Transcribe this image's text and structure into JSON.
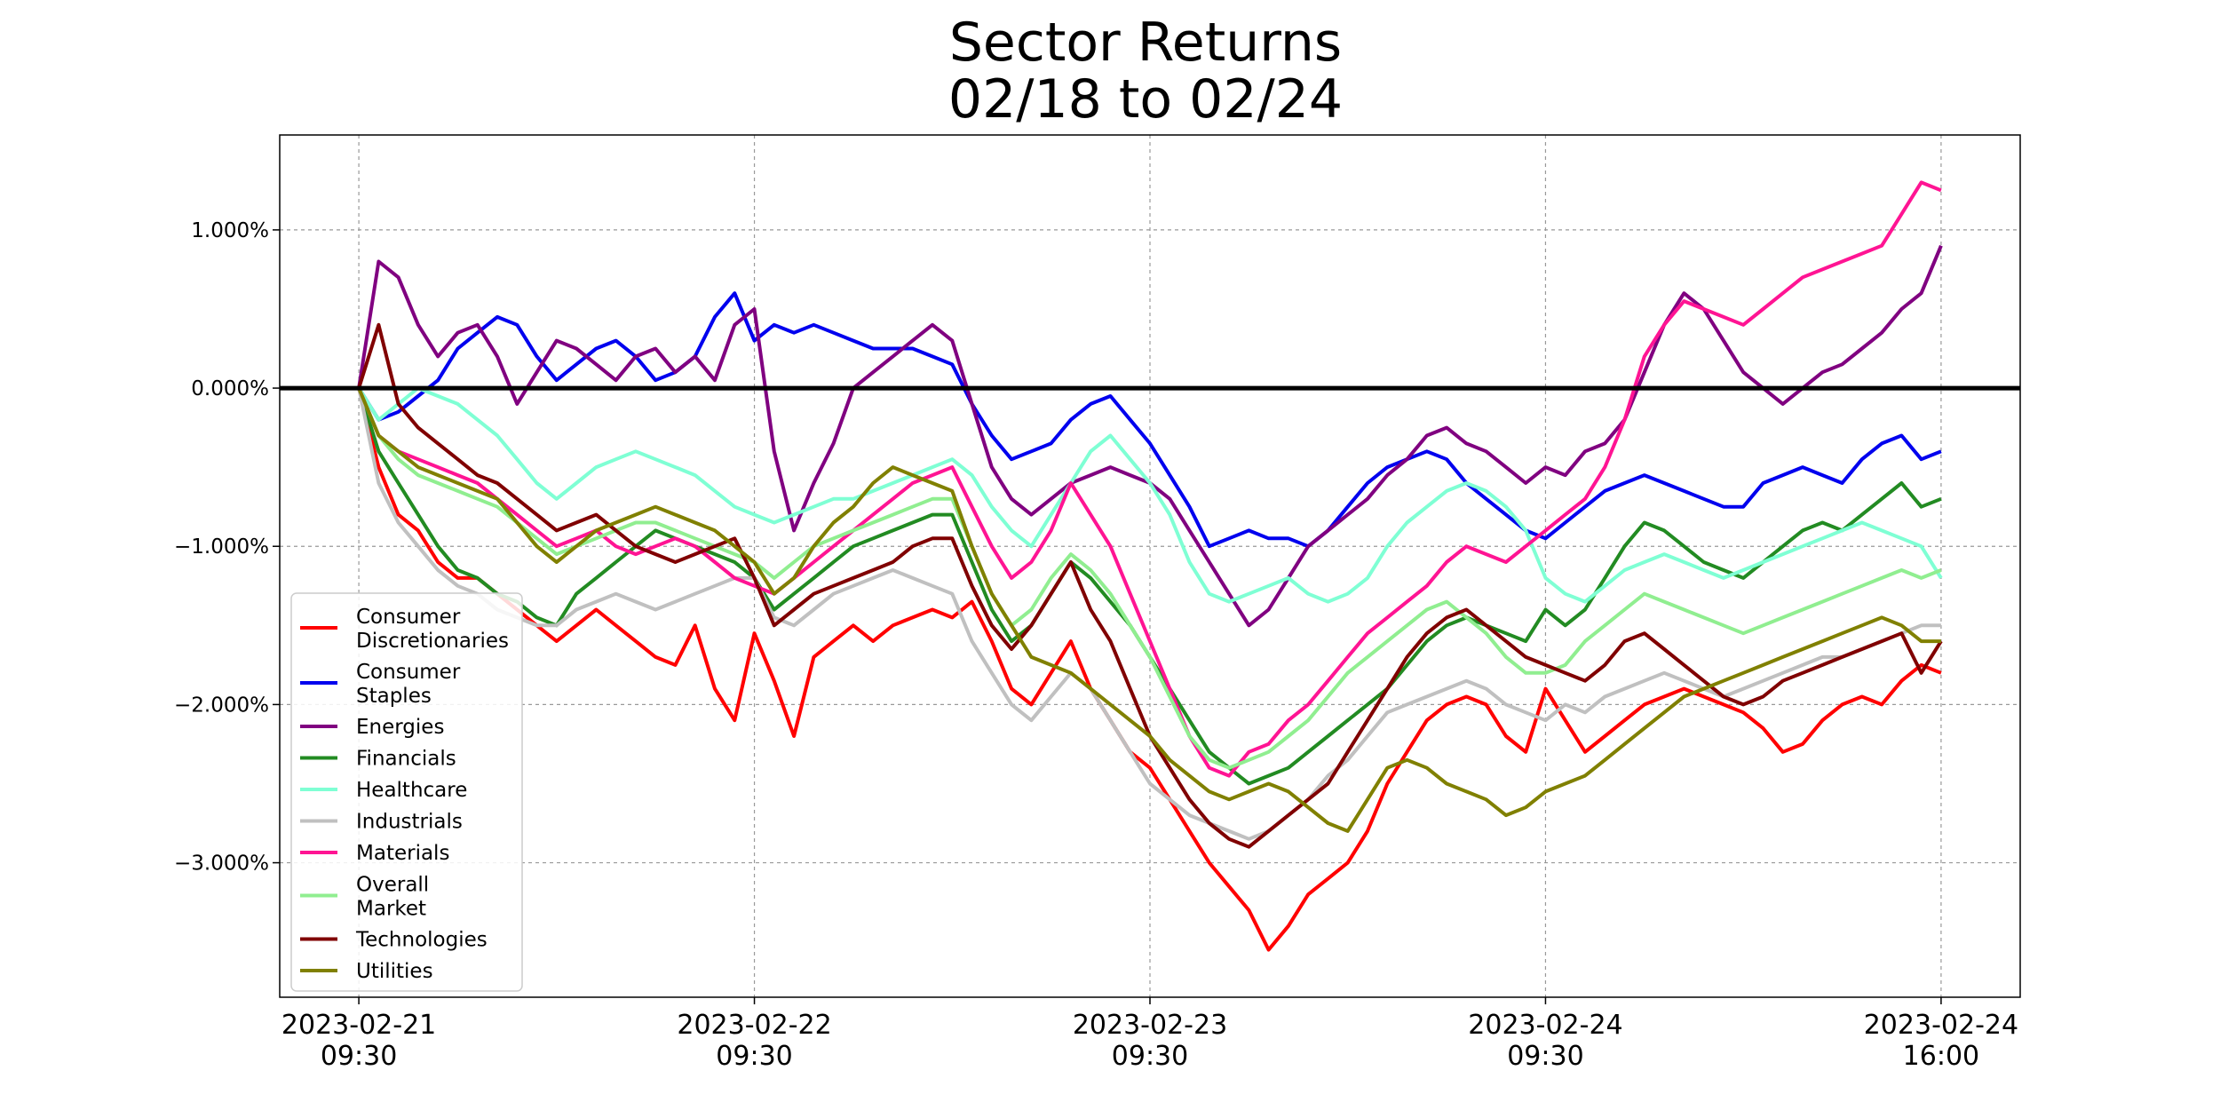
{
  "chart_data": {
    "type": "line",
    "title": [
      "Sector Returns",
      "02/18 to 02/24"
    ],
    "xlabel": "",
    "ylabel": "",
    "x": [
      0,
      0.05,
      0.1,
      0.15,
      0.2,
      0.25,
      0.3,
      0.35,
      0.4,
      0.45,
      0.5,
      0.55,
      0.6,
      0.65,
      0.7,
      0.75,
      0.8,
      0.85,
      0.9,
      0.95,
      1.0,
      1.05,
      1.1,
      1.15,
      1.2,
      1.25,
      1.3,
      1.35,
      1.4,
      1.45,
      1.5,
      1.55,
      1.6,
      1.65,
      1.7,
      1.75,
      1.8,
      1.85,
      1.9,
      1.95,
      2.0,
      2.05,
      2.1,
      2.15,
      2.2,
      2.25,
      2.3,
      2.35,
      2.4,
      2.45,
      2.5,
      2.55,
      2.6,
      2.65,
      2.7,
      2.75,
      2.8,
      2.85,
      2.9,
      2.95,
      3.0,
      3.05,
      3.1,
      3.15,
      3.2,
      3.25,
      3.3,
      3.35,
      3.4,
      3.45,
      3.5,
      3.55,
      3.6,
      3.65,
      3.7,
      3.75,
      3.8,
      3.85,
      3.9,
      3.95,
      4.0
    ],
    "xlim": [
      -0.2,
      4.2
    ],
    "ylim": [
      -3.85,
      1.6
    ],
    "yticks": [
      -3,
      -2,
      -1,
      0,
      1
    ],
    "ytick_labels": [
      "−3.000%",
      "−2.000%",
      "−1.000%",
      "0.000%",
      "1.000%"
    ],
    "xticks": [
      0,
      1,
      2,
      3,
      4
    ],
    "xtick_labels": [
      [
        "2023-02-21",
        "09:30"
      ],
      [
        "2023-02-22",
        "09:30"
      ],
      [
        "2023-02-23",
        "09:30"
      ],
      [
        "2023-02-24",
        "09:30"
      ],
      [
        "2023-02-24",
        "16:00"
      ]
    ],
    "grid": true,
    "zero_line": 0,
    "legend_position": "lower-left",
    "series": [
      {
        "name": [
          "Consumer",
          "Discretionaries"
        ],
        "color": "#ff0000",
        "values": [
          0,
          -0.5,
          -0.8,
          -0.9,
          -1.1,
          -1.2,
          -1.2,
          -1.3,
          -1.4,
          -1.5,
          -1.6,
          -1.5,
          -1.4,
          -1.5,
          -1.6,
          -1.7,
          -1.75,
          -1.5,
          -1.9,
          -2.1,
          -1.55,
          -1.85,
          -2.2,
          -1.7,
          -1.6,
          -1.5,
          -1.6,
          -1.5,
          -1.45,
          -1.4,
          -1.45,
          -1.35,
          -1.6,
          -1.9,
          -2.0,
          -1.8,
          -1.6,
          -1.9,
          -2.1,
          -2.3,
          -2.4,
          -2.6,
          -2.8,
          -3.0,
          -3.15,
          -3.3,
          -3.55,
          -3.4,
          -3.2,
          -3.1,
          -3.0,
          -2.8,
          -2.5,
          -2.3,
          -2.1,
          -2.0,
          -1.95,
          -2.0,
          -2.2,
          -2.3,
          -1.9,
          -2.1,
          -2.3,
          -2.2,
          -2.1,
          -2.0,
          -1.95,
          -1.9,
          -1.95,
          -2.0,
          -2.05,
          -2.15,
          -2.3,
          -2.25,
          -2.1,
          -2.0,
          -1.95,
          -2.0,
          -1.85,
          -1.75,
          -1.8
        ]
      },
      {
        "name": [
          "Consumer",
          "Staples"
        ],
        "color": "#0000ee",
        "values": [
          0,
          -0.2,
          -0.15,
          -0.05,
          0.05,
          0.25,
          0.35,
          0.45,
          0.4,
          0.2,
          0.05,
          0.15,
          0.25,
          0.3,
          0.2,
          0.05,
          0.1,
          0.2,
          0.45,
          0.6,
          0.3,
          0.4,
          0.35,
          0.4,
          0.35,
          0.3,
          0.25,
          0.25,
          0.25,
          0.2,
          0.15,
          -0.1,
          -0.3,
          -0.45,
          -0.4,
          -0.35,
          -0.2,
          -0.1,
          -0.05,
          -0.2,
          -0.35,
          -0.55,
          -0.75,
          -1.0,
          -0.95,
          -0.9,
          -0.95,
          -0.95,
          -1.0,
          -0.9,
          -0.75,
          -0.6,
          -0.5,
          -0.45,
          -0.4,
          -0.45,
          -0.6,
          -0.7,
          -0.8,
          -0.9,
          -0.95,
          -0.85,
          -0.75,
          -0.65,
          -0.6,
          -0.55,
          -0.6,
          -0.65,
          -0.7,
          -0.75,
          -0.75,
          -0.6,
          -0.55,
          -0.5,
          -0.55,
          -0.6,
          -0.45,
          -0.35,
          -0.3,
          -0.45,
          -0.4
        ]
      },
      {
        "name": [
          "Energies"
        ],
        "color": "#800080",
        "values": [
          0,
          0.8,
          0.7,
          0.4,
          0.2,
          0.35,
          0.4,
          0.2,
          -0.1,
          0.1,
          0.3,
          0.25,
          0.15,
          0.05,
          0.2,
          0.25,
          0.1,
          0.2,
          0.05,
          0.4,
          0.5,
          -0.4,
          -0.9,
          -0.6,
          -0.35,
          0.0,
          0.1,
          0.2,
          0.3,
          0.4,
          0.3,
          -0.1,
          -0.5,
          -0.7,
          -0.8,
          -0.7,
          -0.6,
          -0.55,
          -0.5,
          -0.55,
          -0.6,
          -0.7,
          -0.9,
          -1.1,
          -1.3,
          -1.5,
          -1.4,
          -1.2,
          -1.0,
          -0.9,
          -0.8,
          -0.7,
          -0.55,
          -0.45,
          -0.3,
          -0.25,
          -0.35,
          -0.4,
          -0.5,
          -0.6,
          -0.5,
          -0.55,
          -0.4,
          -0.35,
          -0.2,
          0.1,
          0.4,
          0.6,
          0.5,
          0.3,
          0.1,
          0.0,
          -0.1,
          0.0,
          0.1,
          0.15,
          0.25,
          0.35,
          0.5,
          0.6,
          0.9
        ]
      },
      {
        "name": [
          "Financials"
        ],
        "color": "#228b22",
        "values": [
          0,
          -0.4,
          -0.6,
          -0.8,
          -1.0,
          -1.15,
          -1.2,
          -1.3,
          -1.35,
          -1.45,
          -1.5,
          -1.3,
          -1.2,
          -1.1,
          -1.0,
          -0.9,
          -0.95,
          -1.0,
          -1.05,
          -1.1,
          -1.2,
          -1.4,
          -1.3,
          -1.2,
          -1.1,
          -1.0,
          -0.95,
          -0.9,
          -0.85,
          -0.8,
          -0.8,
          -1.1,
          -1.4,
          -1.6,
          -1.5,
          -1.3,
          -1.1,
          -1.2,
          -1.35,
          -1.5,
          -1.7,
          -1.9,
          -2.1,
          -2.3,
          -2.4,
          -2.5,
          -2.45,
          -2.4,
          -2.3,
          -2.2,
          -2.1,
          -2.0,
          -1.9,
          -1.75,
          -1.6,
          -1.5,
          -1.45,
          -1.5,
          -1.55,
          -1.6,
          -1.4,
          -1.5,
          -1.4,
          -1.2,
          -1.0,
          -0.85,
          -0.9,
          -1.0,
          -1.1,
          -1.15,
          -1.2,
          -1.1,
          -1.0,
          -0.9,
          -0.85,
          -0.9,
          -0.8,
          -0.7,
          -0.6,
          -0.75,
          -0.7
        ]
      },
      {
        "name": [
          "Healthcare"
        ],
        "color": "#7fffd4",
        "values": [
          0,
          -0.2,
          -0.1,
          0.0,
          -0.05,
          -0.1,
          -0.2,
          -0.3,
          -0.45,
          -0.6,
          -0.7,
          -0.6,
          -0.5,
          -0.45,
          -0.4,
          -0.45,
          -0.5,
          -0.55,
          -0.65,
          -0.75,
          -0.8,
          -0.85,
          -0.8,
          -0.75,
          -0.7,
          -0.7,
          -0.65,
          -0.6,
          -0.55,
          -0.5,
          -0.45,
          -0.55,
          -0.75,
          -0.9,
          -1.0,
          -0.8,
          -0.6,
          -0.4,
          -0.3,
          -0.45,
          -0.6,
          -0.8,
          -1.1,
          -1.3,
          -1.35,
          -1.3,
          -1.25,
          -1.2,
          -1.3,
          -1.35,
          -1.3,
          -1.2,
          -1.0,
          -0.85,
          -0.75,
          -0.65,
          -0.6,
          -0.65,
          -0.75,
          -0.9,
          -1.2,
          -1.3,
          -1.35,
          -1.25,
          -1.15,
          -1.1,
          -1.05,
          -1.1,
          -1.15,
          -1.2,
          -1.15,
          -1.1,
          -1.05,
          -1.0,
          -0.95,
          -0.9,
          -0.85,
          -0.9,
          -0.95,
          -1.0,
          -1.2
        ]
      },
      {
        "name": [
          "Industrials"
        ],
        "color": "#c0c0c0",
        "values": [
          0,
          -0.6,
          -0.85,
          -1.0,
          -1.15,
          -1.25,
          -1.3,
          -1.4,
          -1.45,
          -1.5,
          -1.5,
          -1.4,
          -1.35,
          -1.3,
          -1.35,
          -1.4,
          -1.35,
          -1.3,
          -1.25,
          -1.2,
          -1.2,
          -1.45,
          -1.5,
          -1.4,
          -1.3,
          -1.25,
          -1.2,
          -1.15,
          -1.2,
          -1.25,
          -1.3,
          -1.6,
          -1.8,
          -2.0,
          -2.1,
          -1.95,
          -1.8,
          -1.9,
          -2.1,
          -2.3,
          -2.5,
          -2.6,
          -2.7,
          -2.75,
          -2.8,
          -2.85,
          -2.8,
          -2.7,
          -2.6,
          -2.45,
          -2.35,
          -2.2,
          -2.05,
          -2.0,
          -1.95,
          -1.9,
          -1.85,
          -1.9,
          -2.0,
          -2.05,
          -2.1,
          -2.0,
          -2.05,
          -1.95,
          -1.9,
          -1.85,
          -1.8,
          -1.85,
          -1.9,
          -1.95,
          -1.9,
          -1.85,
          -1.8,
          -1.75,
          -1.7,
          -1.7,
          -1.65,
          -1.6,
          -1.55,
          -1.5,
          -1.5
        ]
      },
      {
        "name": [
          "Materials"
        ],
        "color": "#ff1493",
        "values": [
          0,
          -0.3,
          -0.4,
          -0.45,
          -0.5,
          -0.55,
          -0.6,
          -0.7,
          -0.8,
          -0.9,
          -1.0,
          -0.95,
          -0.9,
          -1.0,
          -1.05,
          -1.0,
          -0.95,
          -1.0,
          -1.1,
          -1.2,
          -1.25,
          -1.3,
          -1.2,
          -1.1,
          -1.0,
          -0.9,
          -0.8,
          -0.7,
          -0.6,
          -0.55,
          -0.5,
          -0.75,
          -1.0,
          -1.2,
          -1.1,
          -0.9,
          -0.6,
          -0.8,
          -1.0,
          -1.3,
          -1.6,
          -1.9,
          -2.2,
          -2.4,
          -2.45,
          -2.3,
          -2.25,
          -2.1,
          -2.0,
          -1.85,
          -1.7,
          -1.55,
          -1.45,
          -1.35,
          -1.25,
          -1.1,
          -1.0,
          -1.05,
          -1.1,
          -1.0,
          -0.9,
          -0.8,
          -0.7,
          -0.5,
          -0.2,
          0.2,
          0.4,
          0.55,
          0.5,
          0.45,
          0.4,
          0.5,
          0.6,
          0.7,
          0.75,
          0.8,
          0.85,
          0.9,
          1.1,
          1.3,
          1.25
        ]
      },
      {
        "name": [
          "Overall",
          "Market"
        ],
        "color": "#90ee90",
        "values": [
          0,
          -0.3,
          -0.45,
          -0.55,
          -0.6,
          -0.65,
          -0.7,
          -0.75,
          -0.85,
          -0.95,
          -1.05,
          -1.0,
          -0.95,
          -0.9,
          -0.85,
          -0.85,
          -0.9,
          -0.95,
          -1.0,
          -1.05,
          -1.1,
          -1.2,
          -1.1,
          -1.0,
          -0.95,
          -0.9,
          -0.85,
          -0.8,
          -0.75,
          -0.7,
          -0.7,
          -1.0,
          -1.3,
          -1.5,
          -1.4,
          -1.2,
          -1.05,
          -1.15,
          -1.3,
          -1.5,
          -1.7,
          -1.95,
          -2.2,
          -2.35,
          -2.4,
          -2.35,
          -2.3,
          -2.2,
          -2.1,
          -1.95,
          -1.8,
          -1.7,
          -1.6,
          -1.5,
          -1.4,
          -1.35,
          -1.45,
          -1.55,
          -1.7,
          -1.8,
          -1.8,
          -1.75,
          -1.6,
          -1.5,
          -1.4,
          -1.3,
          -1.35,
          -1.4,
          -1.45,
          -1.5,
          -1.55,
          -1.5,
          -1.45,
          -1.4,
          -1.35,
          -1.3,
          -1.25,
          -1.2,
          -1.15,
          -1.2,
          -1.15
        ]
      },
      {
        "name": [
          "Technologies"
        ],
        "color": "#800000",
        "values": [
          0,
          0.4,
          -0.1,
          -0.25,
          -0.35,
          -0.45,
          -0.55,
          -0.6,
          -0.7,
          -0.8,
          -0.9,
          -0.85,
          -0.8,
          -0.9,
          -1.0,
          -1.05,
          -1.1,
          -1.05,
          -1.0,
          -0.95,
          -1.2,
          -1.5,
          -1.4,
          -1.3,
          -1.25,
          -1.2,
          -1.15,
          -1.1,
          -1.0,
          -0.95,
          -0.95,
          -1.25,
          -1.5,
          -1.65,
          -1.5,
          -1.3,
          -1.1,
          -1.4,
          -1.6,
          -1.9,
          -2.2,
          -2.4,
          -2.6,
          -2.75,
          -2.85,
          -2.9,
          -2.8,
          -2.7,
          -2.6,
          -2.5,
          -2.3,
          -2.1,
          -1.9,
          -1.7,
          -1.55,
          -1.45,
          -1.4,
          -1.5,
          -1.6,
          -1.7,
          -1.75,
          -1.8,
          -1.85,
          -1.75,
          -1.6,
          -1.55,
          -1.65,
          -1.75,
          -1.85,
          -1.95,
          -2.0,
          -1.95,
          -1.85,
          -1.8,
          -1.75,
          -1.7,
          -1.65,
          -1.6,
          -1.55,
          -1.8,
          -1.6
        ]
      },
      {
        "name": [
          "Utilities"
        ],
        "color": "#808000",
        "values": [
          0,
          -0.3,
          -0.4,
          -0.5,
          -0.55,
          -0.6,
          -0.65,
          -0.7,
          -0.85,
          -1.0,
          -1.1,
          -1.0,
          -0.9,
          -0.85,
          -0.8,
          -0.75,
          -0.8,
          -0.85,
          -0.9,
          -1.0,
          -1.1,
          -1.3,
          -1.2,
          -1.0,
          -0.85,
          -0.75,
          -0.6,
          -0.5,
          -0.55,
          -0.6,
          -0.65,
          -1.0,
          -1.3,
          -1.5,
          -1.7,
          -1.75,
          -1.8,
          -1.9,
          -2.0,
          -2.1,
          -2.2,
          -2.35,
          -2.45,
          -2.55,
          -2.6,
          -2.55,
          -2.5,
          -2.55,
          -2.65,
          -2.75,
          -2.8,
          -2.6,
          -2.4,
          -2.35,
          -2.4,
          -2.5,
          -2.55,
          -2.6,
          -2.7,
          -2.65,
          -2.55,
          -2.5,
          -2.45,
          -2.35,
          -2.25,
          -2.15,
          -2.05,
          -1.95,
          -1.9,
          -1.85,
          -1.8,
          -1.75,
          -1.7,
          -1.65,
          -1.6,
          -1.55,
          -1.5,
          -1.45,
          -1.5,
          -1.6,
          -1.6
        ]
      }
    ]
  }
}
